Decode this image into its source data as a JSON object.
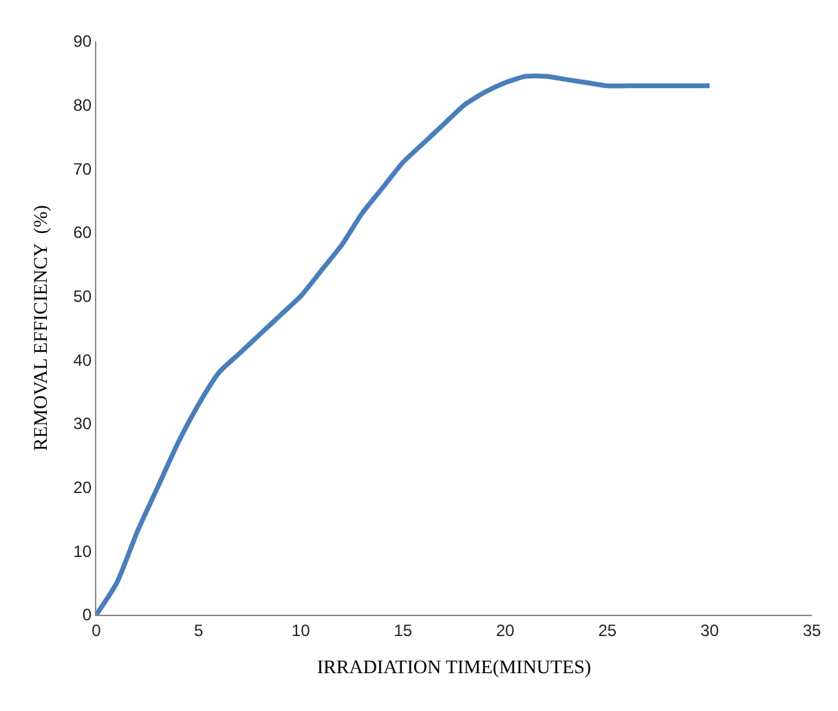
{
  "chart_data": {
    "type": "line",
    "xlabel": "IRRADIATION TIME(MINUTES)",
    "ylabel": "REMOVAL EFFICIENCY  (%)",
    "x": [
      0,
      1,
      2,
      3,
      4,
      5,
      6,
      7,
      8,
      9,
      10,
      11,
      12,
      13,
      14,
      15,
      16,
      17,
      18,
      19,
      20,
      21,
      22,
      23,
      24,
      25,
      26,
      28,
      30
    ],
    "series": [
      {
        "color": "#4a7ebb",
        "values": [
          0,
          5,
          13,
          20,
          27,
          33,
          38,
          41,
          44,
          47,
          50,
          54,
          58,
          63,
          67,
          71,
          74,
          77,
          80,
          82,
          83.5,
          84.5,
          84.5,
          84,
          83.5,
          83,
          83,
          83,
          83
        ]
      }
    ],
    "xlim": [
      0,
      35
    ],
    "xticks": [
      0,
      5,
      10,
      15,
      20,
      25,
      30,
      35
    ],
    "ylim": [
      0,
      90
    ],
    "yticks": [
      0,
      10,
      20,
      30,
      40,
      50,
      60,
      70,
      80,
      90
    ],
    "grid": false,
    "marker": "none",
    "line_style": "solid"
  }
}
